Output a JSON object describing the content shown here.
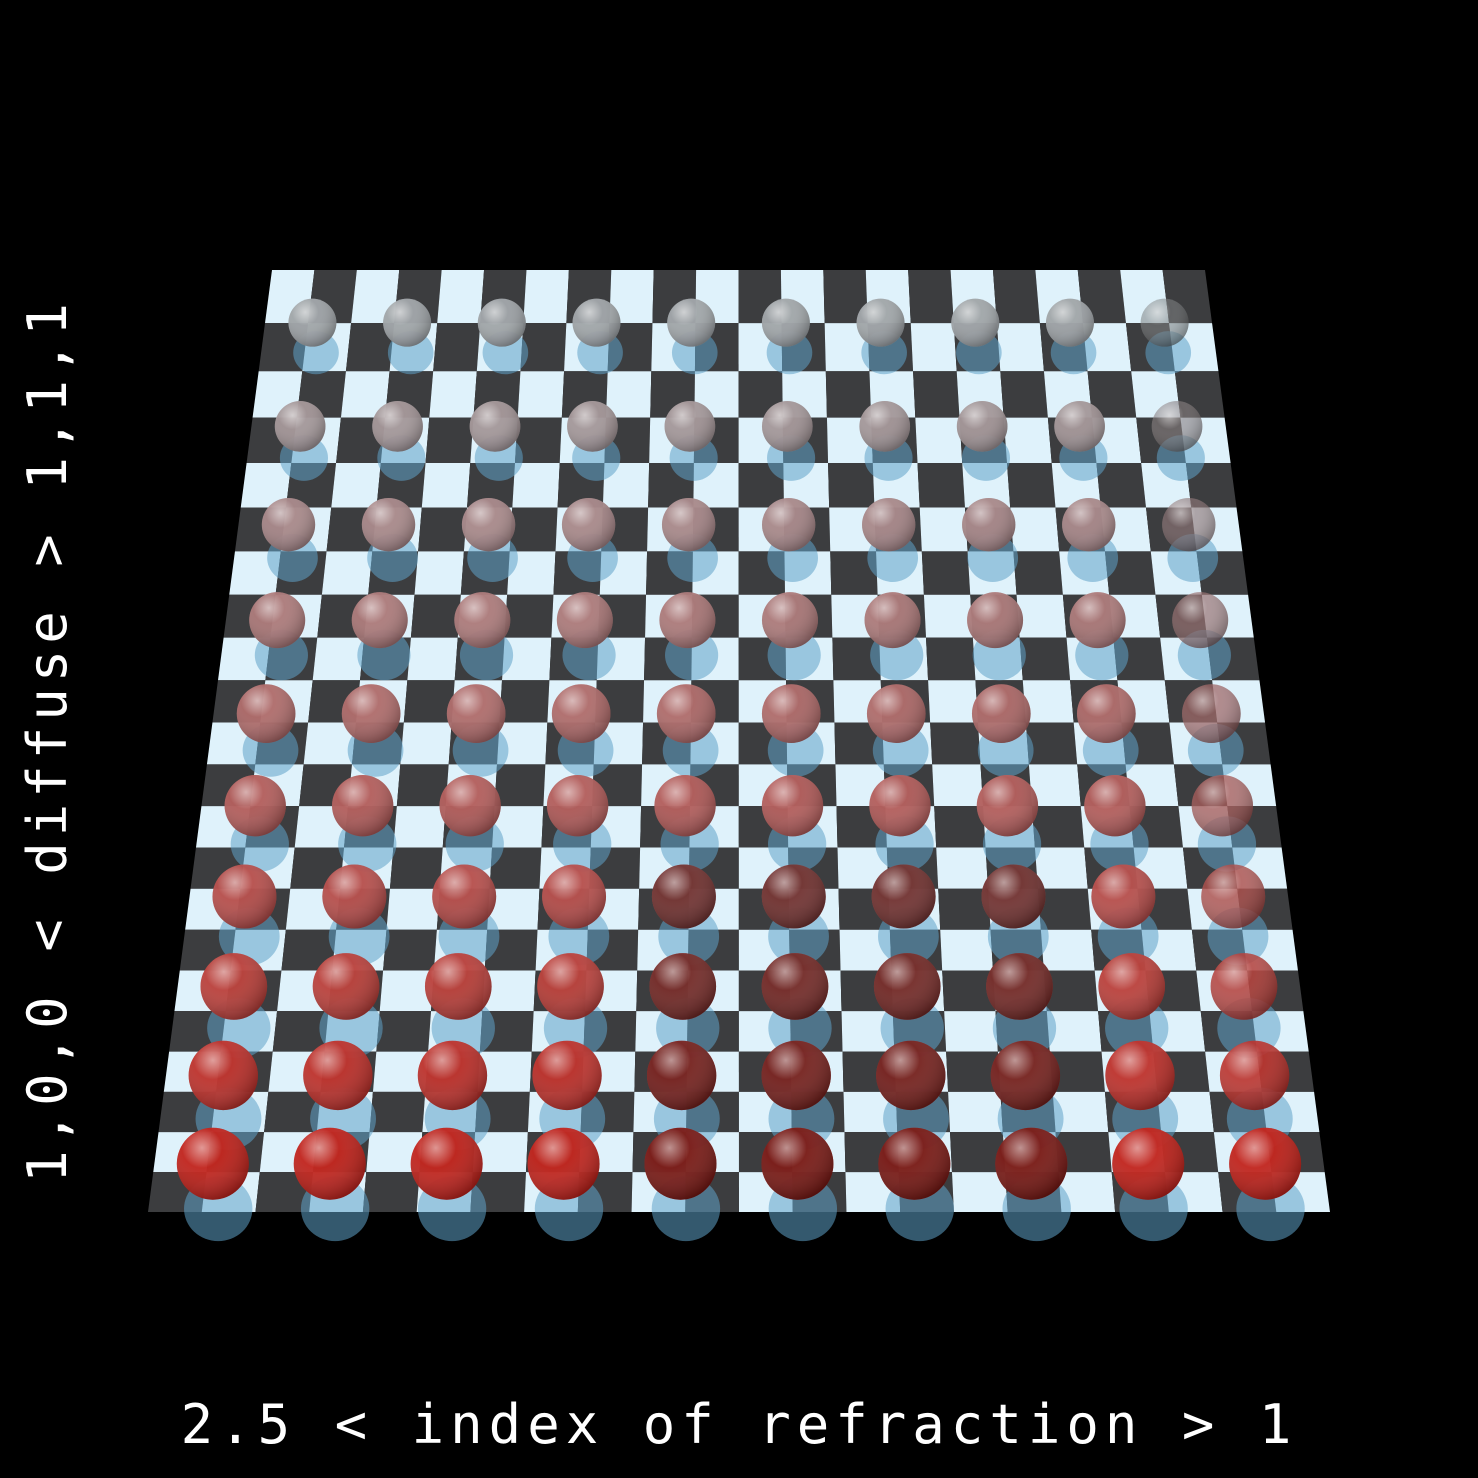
{
  "image": {
    "description_type": "rendered-scene",
    "background_color": "#000000",
    "checker_light": "#dff2fb",
    "checker_dark": "#3c3d3f",
    "shadow_tint": "#5fa3c9",
    "sphere_clear_tint": "#cfd6db",
    "sphere_red_tint": "#ff1a10",
    "grid": {
      "rows": 10,
      "columns": 10,
      "checker_squares": 22
    }
  },
  "captions": {
    "x_axis": "2.5 < index of refraction > 1",
    "y_axis": "1,0,0 < diffuse > 1,1,1"
  }
}
